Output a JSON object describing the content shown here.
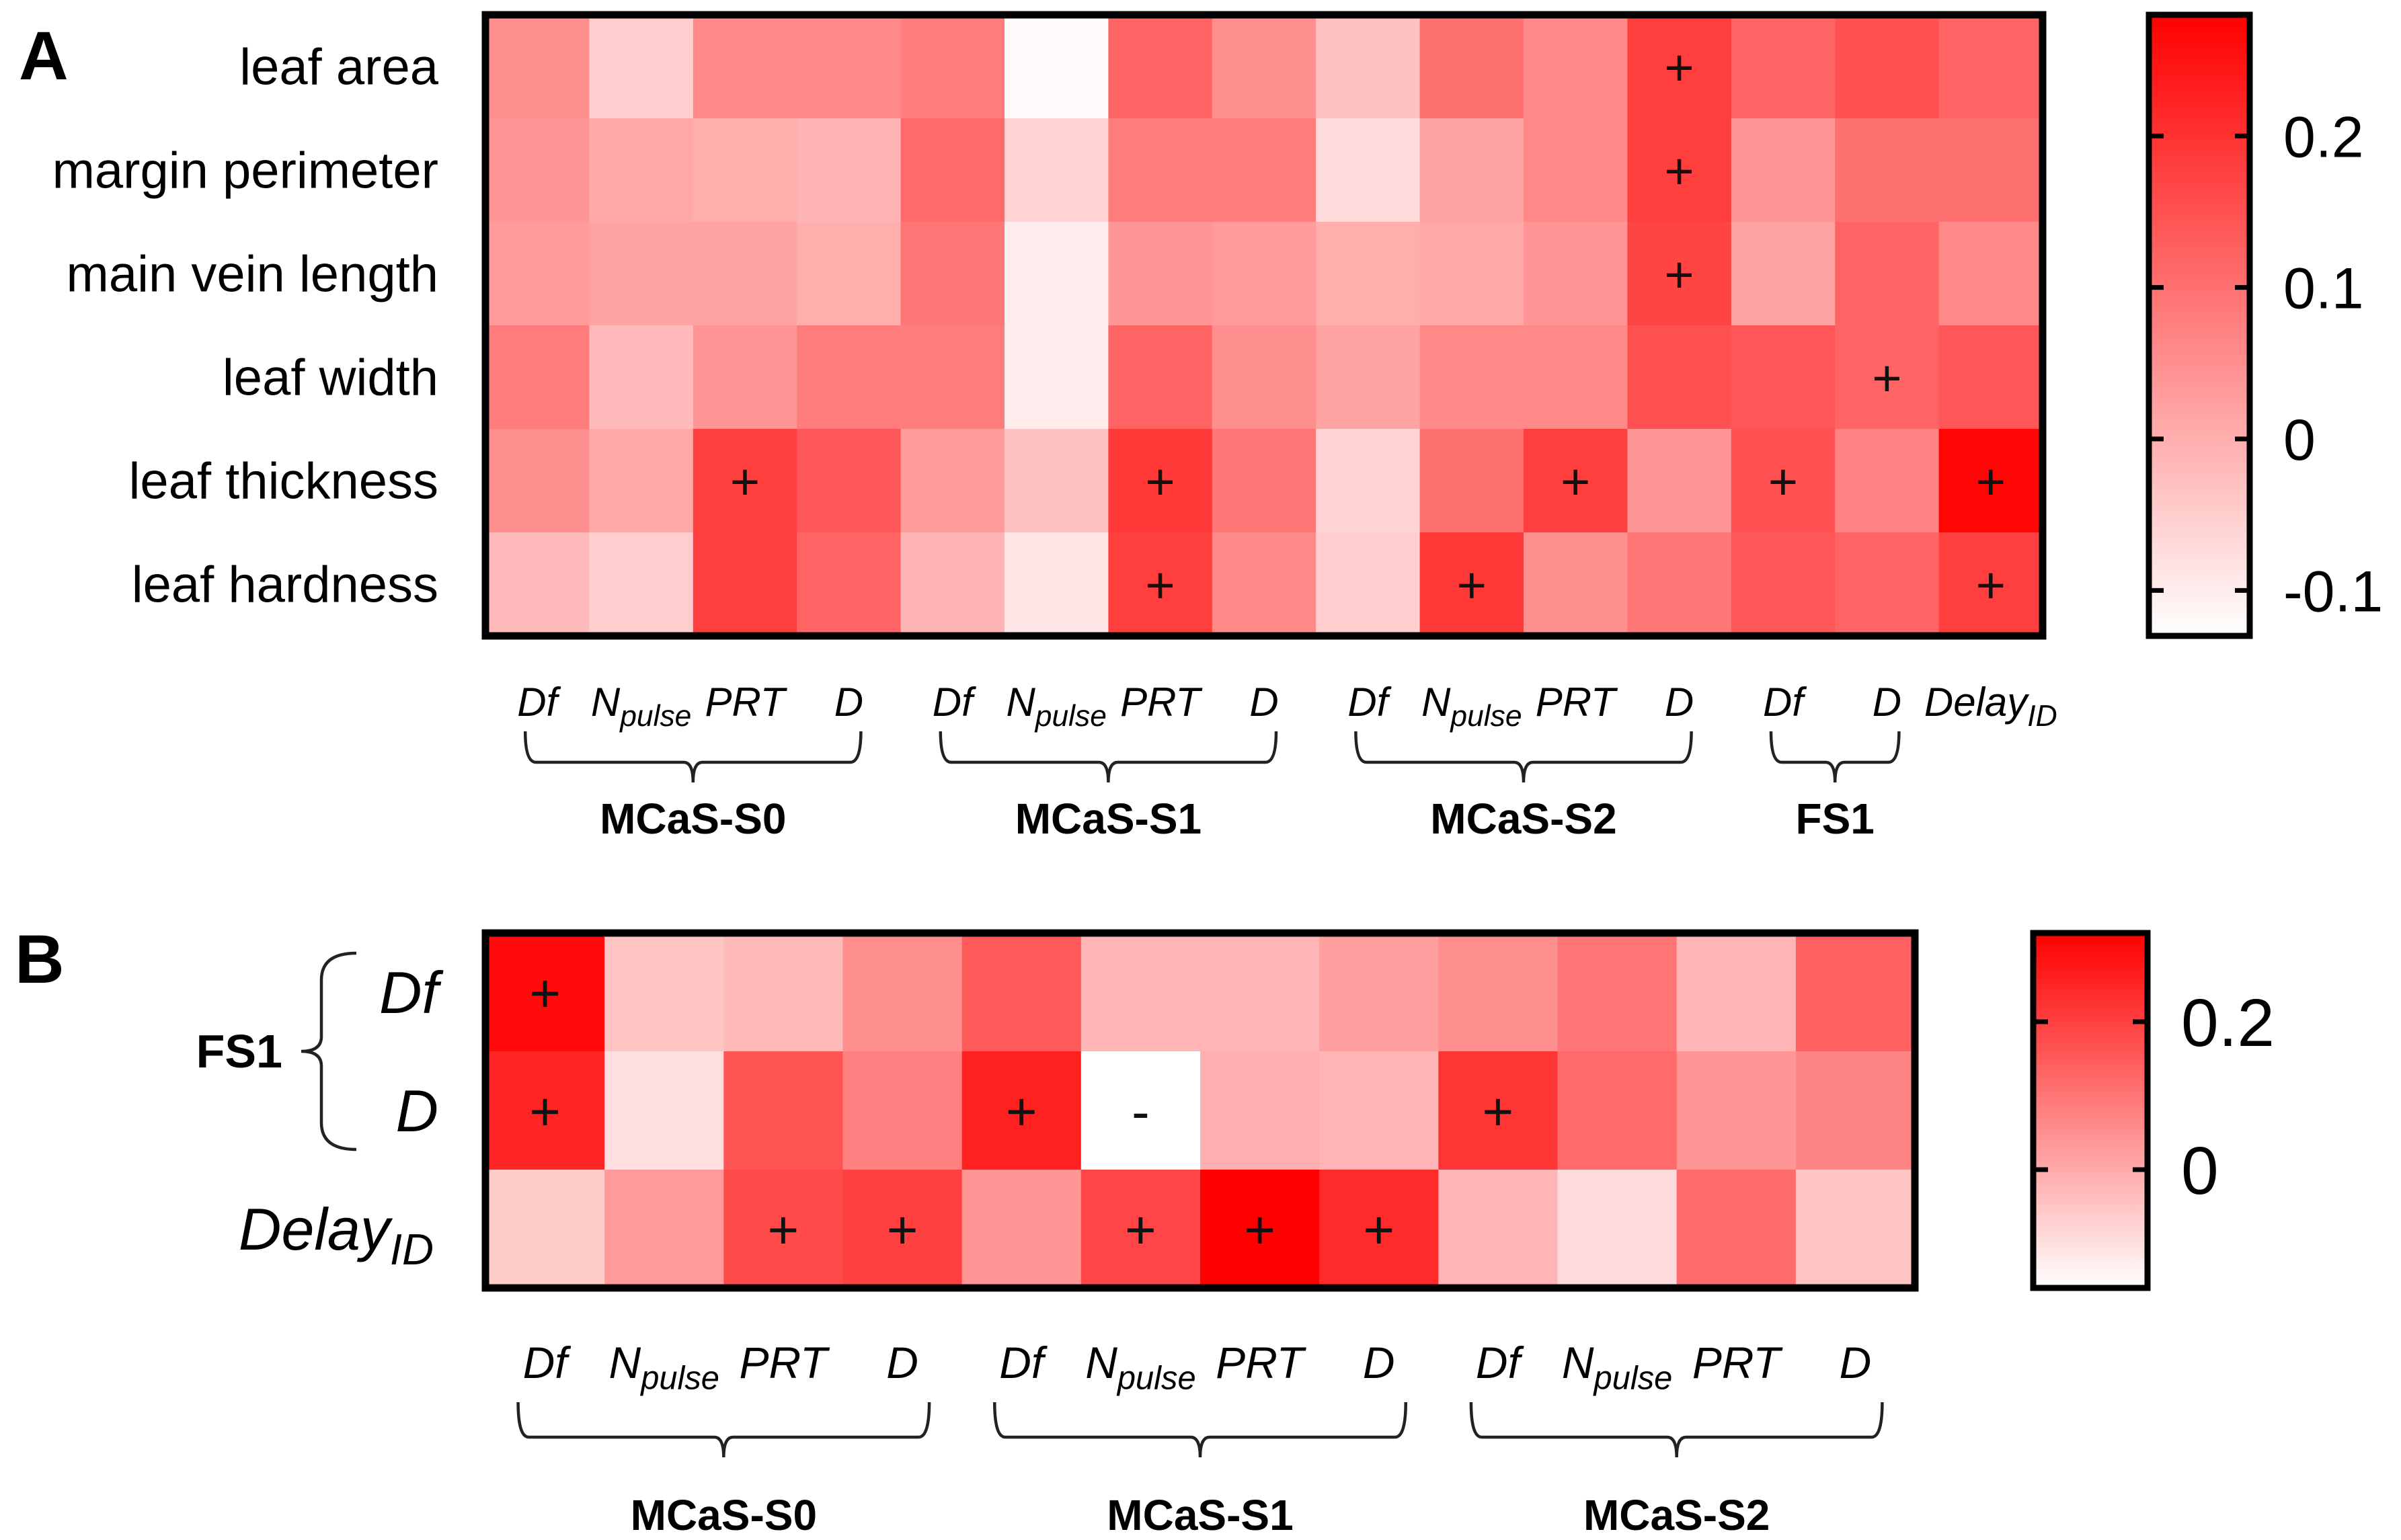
{
  "chart_data": [
    {
      "panel": "A",
      "type": "heatmap",
      "rows": [
        "leaf area",
        "margin perimeter",
        "main vein length",
        "leaf width",
        "leaf thickness",
        "leaf hardness"
      ],
      "columns": [
        {
          "label": "Df",
          "sub": ""
        },
        {
          "label": "N",
          "sub": "pulse"
        },
        {
          "label": "PRT",
          "sub": ""
        },
        {
          "label": "D",
          "sub": ""
        },
        {
          "label": "Df",
          "sub": ""
        },
        {
          "label": "N",
          "sub": "pulse"
        },
        {
          "label": "PRT",
          "sub": ""
        },
        {
          "label": "D",
          "sub": ""
        },
        {
          "label": "Df",
          "sub": ""
        },
        {
          "label": "N",
          "sub": "pulse"
        },
        {
          "label": "PRT",
          "sub": ""
        },
        {
          "label": "D",
          "sub": ""
        },
        {
          "label": "Df",
          "sub": ""
        },
        {
          "label": "D",
          "sub": ""
        },
        {
          "label": "Delay",
          "sub": "ID"
        }
      ],
      "groups": [
        {
          "name": "MCaS-S0",
          "from": 0,
          "to": 3
        },
        {
          "name": "MCaS-S1",
          "from": 4,
          "to": 7
        },
        {
          "name": "MCaS-S2",
          "from": 8,
          "to": 11
        },
        {
          "name": "FS1",
          "from": 12,
          "to": 13
        }
      ],
      "values": [
        [
          0.05,
          -0.05,
          0.06,
          0.06,
          0.08,
          -0.12,
          0.12,
          0.05,
          -0.03,
          0.1,
          0.06,
          0.18,
          0.12,
          0.15,
          0.12
        ],
        [
          0.04,
          0.01,
          0.0,
          -0.01,
          0.11,
          -0.06,
          0.08,
          0.08,
          -0.07,
          0.02,
          0.06,
          0.18,
          0.04,
          0.1,
          0.1
        ],
        [
          0.03,
          0.02,
          0.02,
          0.0,
          0.09,
          -0.1,
          0.04,
          0.03,
          0.0,
          0.01,
          0.04,
          0.17,
          0.02,
          0.12,
          0.06
        ],
        [
          0.08,
          -0.02,
          0.04,
          0.08,
          0.08,
          -0.1,
          0.12,
          0.05,
          0.02,
          0.06,
          0.06,
          0.15,
          0.14,
          0.12,
          0.14
        ],
        [
          0.05,
          0.01,
          0.18,
          0.14,
          0.03,
          -0.03,
          0.19,
          0.09,
          -0.06,
          0.1,
          0.18,
          0.04,
          0.15,
          0.07,
          0.27
        ],
        [
          -0.02,
          -0.05,
          0.18,
          0.12,
          -0.01,
          -0.09,
          0.18,
          0.06,
          -0.05,
          0.19,
          0.05,
          0.09,
          0.14,
          0.12,
          0.18
        ]
      ],
      "signs": [
        [
          "",
          "",
          "",
          "",
          "",
          "",
          "",
          "",
          "",
          "",
          "",
          "+",
          "",
          "",
          ""
        ],
        [
          "",
          "",
          "",
          "",
          "",
          "",
          "",
          "",
          "",
          "",
          "",
          "+",
          "",
          "",
          ""
        ],
        [
          "",
          "",
          "",
          "",
          "",
          "",
          "",
          "",
          "",
          "",
          "",
          "+",
          "",
          "",
          ""
        ],
        [
          "",
          "",
          "",
          "",
          "",
          "",
          "",
          "",
          "",
          "",
          "",
          "",
          "",
          "+",
          ""
        ],
        [
          "",
          "",
          "+",
          "",
          "",
          "",
          "+",
          "",
          "",
          "",
          "+",
          "",
          "+",
          "",
          "+"
        ],
        [
          "",
          "",
          "",
          "",
          "",
          "",
          "+",
          "",
          "",
          "+",
          "",
          "",
          "",
          "",
          "+"
        ]
      ],
      "colorscale": {
        "min": -0.13,
        "max": 0.28,
        "low_color": "#ffffff",
        "high_color": "#ff0000",
        "ticks": [
          0.2,
          0.1,
          0,
          -0.1
        ],
        "tick_labels": [
          "0.2",
          "0.1",
          "0",
          "-0.1"
        ]
      }
    },
    {
      "panel": "B",
      "type": "heatmap",
      "row_group": "FS1",
      "rows": [
        {
          "label": "Df",
          "sub": "",
          "grouped": true
        },
        {
          "label": "D",
          "sub": "",
          "grouped": true
        },
        {
          "label": "Delay",
          "sub": "ID",
          "grouped": false
        }
      ],
      "columns": [
        {
          "label": "Df",
          "sub": ""
        },
        {
          "label": "N",
          "sub": "pulse"
        },
        {
          "label": "PRT",
          "sub": ""
        },
        {
          "label": "D",
          "sub": ""
        },
        {
          "label": "Df",
          "sub": ""
        },
        {
          "label": "N",
          "sub": "pulse"
        },
        {
          "label": "PRT",
          "sub": ""
        },
        {
          "label": "D",
          "sub": ""
        },
        {
          "label": "Df",
          "sub": ""
        },
        {
          "label": "N",
          "sub": "pulse"
        },
        {
          "label": "PRT",
          "sub": ""
        },
        {
          "label": "D",
          "sub": ""
        }
      ],
      "groups": [
        {
          "name": "MCaS-S0",
          "from": 0,
          "to": 3
        },
        {
          "name": "MCaS-S1",
          "from": 4,
          "to": 7
        },
        {
          "name": "MCaS-S2",
          "from": 8,
          "to": 11
        }
      ],
      "values": [
        [
          0.3,
          -0.05,
          -0.03,
          0.05,
          0.15,
          -0.02,
          -0.02,
          0.02,
          0.05,
          0.1,
          -0.02,
          0.14
        ],
        [
          0.25,
          -0.1,
          0.16,
          0.08,
          0.26,
          -0.16,
          -0.01,
          -0.02,
          0.22,
          0.12,
          0.04,
          0.07
        ],
        [
          -0.06,
          0.03,
          0.18,
          0.2,
          0.04,
          0.19,
          0.32,
          0.24,
          -0.02,
          -0.09,
          0.12,
          -0.05
        ]
      ],
      "signs": [
        [
          "+",
          "",
          "",
          "",
          "",
          "",
          "",
          "",
          "",
          "",
          "",
          ""
        ],
        [
          "+",
          "",
          "",
          "",
          "+",
          "-",
          "",
          "",
          "+",
          "",
          "",
          ""
        ],
        [
          "",
          "",
          "+",
          "+",
          "",
          "+",
          "+",
          "+",
          "",
          "",
          "",
          ""
        ]
      ],
      "colorscale": {
        "min": -0.16,
        "max": 0.32,
        "low_color": "#ffffff",
        "high_color": "#ff0000",
        "ticks": [
          0.2,
          0
        ],
        "tick_labels": [
          "0.2",
          "0"
        ]
      }
    }
  ]
}
